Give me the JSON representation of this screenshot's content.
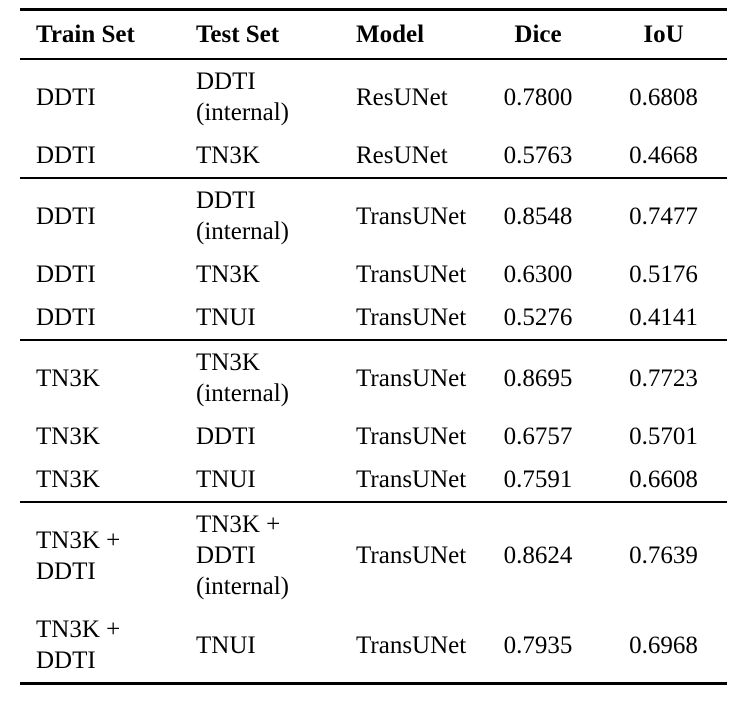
{
  "colors": {
    "background": "#ffffff",
    "text": "#000000",
    "rules": "#000000"
  },
  "table": {
    "headers": {
      "train": "Train Set",
      "test": "Test Set",
      "model": "Model",
      "dice": "Dice",
      "iou": "IoU"
    },
    "groups": [
      {
        "rows": [
          {
            "train": "DDTI",
            "test": [
              "DDTI",
              "(internal)"
            ],
            "model": "ResUNet",
            "dice": "0.7800",
            "iou": "0.6808"
          },
          {
            "train": "DDTI",
            "test": "TN3K",
            "model": "ResUNet",
            "dice": "0.5763",
            "iou": "0.4668"
          }
        ]
      },
      {
        "rows": [
          {
            "train": "DDTI",
            "test": [
              "DDTI",
              "(internal)"
            ],
            "model": "TransUNet",
            "dice": "0.8548",
            "iou": "0.7477"
          },
          {
            "train": "DDTI",
            "test": "TN3K",
            "model": "TransUNet",
            "dice": "0.6300",
            "iou": "0.5176"
          },
          {
            "train": "DDTI",
            "test": "TNUI",
            "model": "TransUNet",
            "dice": "0.5276",
            "iou": "0.4141"
          }
        ]
      },
      {
        "rows": [
          {
            "train": "TN3K",
            "test": [
              "TN3K",
              "(internal)"
            ],
            "model": "TransUNet",
            "dice": "0.8695",
            "iou": "0.7723"
          },
          {
            "train": "TN3K",
            "test": "DDTI",
            "model": "TransUNet",
            "dice": "0.6757",
            "iou": "0.5701"
          },
          {
            "train": "TN3K",
            "test": "TNUI",
            "model": "TransUNet",
            "dice": "0.7591",
            "iou": "0.6608"
          }
        ]
      },
      {
        "rows": [
          {
            "train": [
              "TN3K +",
              "DDTI"
            ],
            "test": [
              "TN3K +",
              "DDTI",
              "(internal)"
            ],
            "model": "TransUNet",
            "dice": "0.8624",
            "iou": "0.7639"
          },
          {
            "train": [
              "TN3K +",
              "DDTI"
            ],
            "test": "TNUI",
            "model": "TransUNet",
            "dice": "0.7935",
            "iou": "0.6968"
          }
        ]
      }
    ]
  }
}
